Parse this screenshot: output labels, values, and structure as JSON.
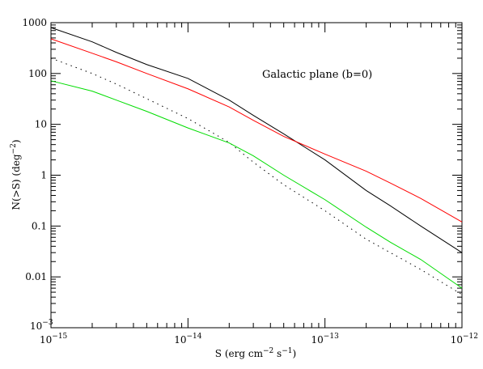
{
  "chart_data": {
    "type": "line",
    "title": "",
    "annotation": "Galactic plane (b=0)",
    "xlabel": {
      "prefix": "S (erg cm",
      "exp1": "−2",
      "mid": " s",
      "exp2": "−1",
      "suffix": ")"
    },
    "ylabel": {
      "prefix": "N(>S) (deg",
      "exp": "−2",
      "suffix": ")"
    },
    "x_scale": "log",
    "y_scale": "log",
    "xlim": [
      1e-15,
      1e-12
    ],
    "ylim": [
      0.001,
      1000
    ],
    "grid": false,
    "x_ticks": [
      {
        "value": 1e-15,
        "base": "10",
        "exp": "−15"
      },
      {
        "value": 1e-14,
        "base": "10",
        "exp": "−14"
      },
      {
        "value": 1e-13,
        "base": "10",
        "exp": "−13"
      },
      {
        "value": 1e-12,
        "base": "10",
        "exp": "−12"
      }
    ],
    "y_ticks": [
      {
        "value": 0.001,
        "base": "10",
        "exp": "−3"
      },
      {
        "value": 0.01,
        "label": "0.01"
      },
      {
        "value": 0.1,
        "label": "0.1"
      },
      {
        "value": 1,
        "label": "1"
      },
      {
        "value": 10,
        "label": "10"
      },
      {
        "value": 100,
        "label": "100"
      },
      {
        "value": 1000,
        "label": "1000"
      }
    ],
    "series": [
      {
        "color": "#000000",
        "style": "solid",
        "x": [
          1e-15,
          2e-15,
          3e-15,
          5e-15,
          1e-14,
          2e-14,
          3e-14,
          5e-14,
          1e-13,
          2e-13,
          3e-13,
          5e-13,
          1e-12
        ],
        "y": [
          800,
          420,
          260,
          150,
          80,
          30,
          15,
          6.5,
          2.0,
          0.5,
          0.25,
          0.1,
          0.03
        ]
      },
      {
        "color": "#ff0000",
        "style": "solid",
        "x": [
          1e-15,
          2e-15,
          3e-15,
          5e-15,
          1e-14,
          2e-14,
          3e-14,
          5e-14,
          1e-13,
          2e-13,
          3e-13,
          5e-13,
          1e-12
        ],
        "y": [
          480,
          250,
          170,
          100,
          50,
          22,
          12,
          5.8,
          2.6,
          1.2,
          0.7,
          0.35,
          0.12
        ]
      },
      {
        "color": "#000000",
        "style": "dotted",
        "x": [
          1e-15,
          2e-15,
          3e-15,
          5e-15,
          1e-14,
          2e-14,
          3e-14,
          5e-14,
          1e-13,
          2e-13,
          3e-13,
          5e-13,
          1e-12
        ],
        "y": [
          200,
          100,
          62,
          32,
          13,
          4.4,
          1.8,
          0.65,
          0.2,
          0.055,
          0.03,
          0.014,
          0.0045
        ]
      },
      {
        "color": "#00dd00",
        "style": "solid",
        "x": [
          1e-15,
          2e-15,
          3e-15,
          5e-15,
          1e-14,
          2e-14,
          3e-14,
          5e-14,
          1e-13,
          2e-13,
          3e-13,
          5e-13,
          1e-12
        ],
        "y": [
          72,
          45,
          30,
          18,
          8.5,
          4.3,
          2.4,
          1.0,
          0.33,
          0.095,
          0.048,
          0.022,
          0.006
        ]
      }
    ]
  }
}
